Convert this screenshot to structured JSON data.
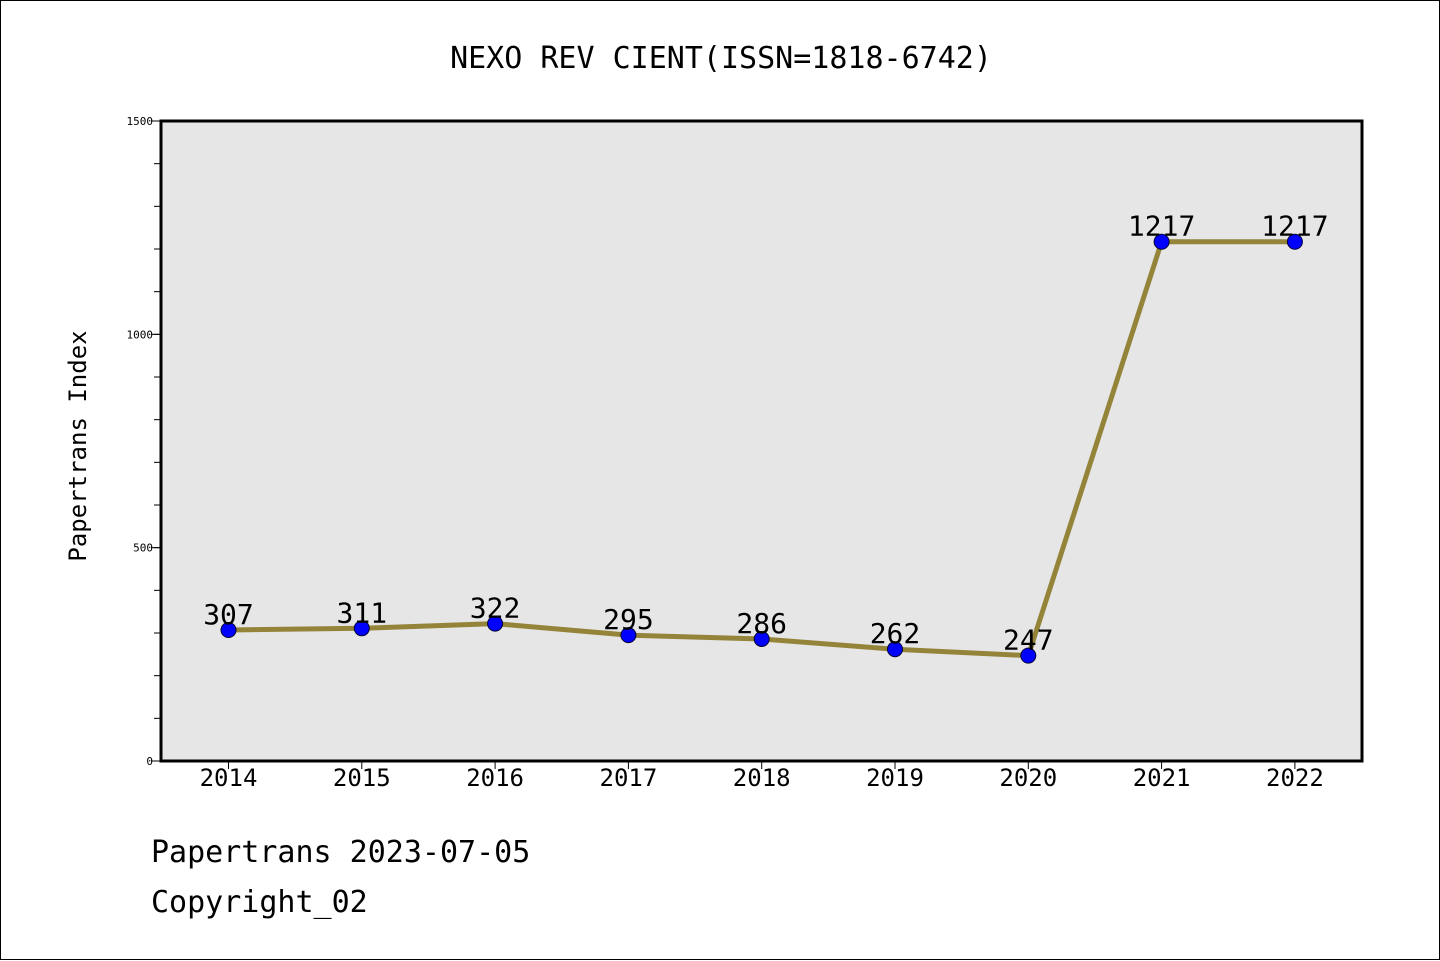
{
  "chart_data": {
    "type": "line",
    "title": "NEXO REV CIENT(ISSN=1818-6742)",
    "xlabel": "",
    "ylabel": "Papertrans Index",
    "categories": [
      "2014",
      "2015",
      "2016",
      "2017",
      "2018",
      "2019",
      "2020",
      "2021",
      "2022"
    ],
    "series": [
      {
        "values": [
          307,
          311,
          322,
          295,
          286,
          262,
          247,
          1217,
          1217
        ],
        "line_color": "#94843a",
        "marker_color": "#0000ff"
      }
    ],
    "data_labels": [
      "307",
      "311",
      "322",
      "295",
      "286",
      "262",
      "247",
      "1217",
      "1217"
    ],
    "ylim": [
      0,
      1500
    ],
    "y_ticks": [
      "0",
      "500",
      "1000",
      "1500"
    ],
    "y_tick_values": [
      0,
      500,
      1000,
      1500
    ],
    "y_minor_step": 100,
    "grid": false,
    "background_color": "#e6e6e6"
  },
  "footer": {
    "line1": "Papertrans 2023-07-05",
    "line2": "Copyright_02"
  }
}
